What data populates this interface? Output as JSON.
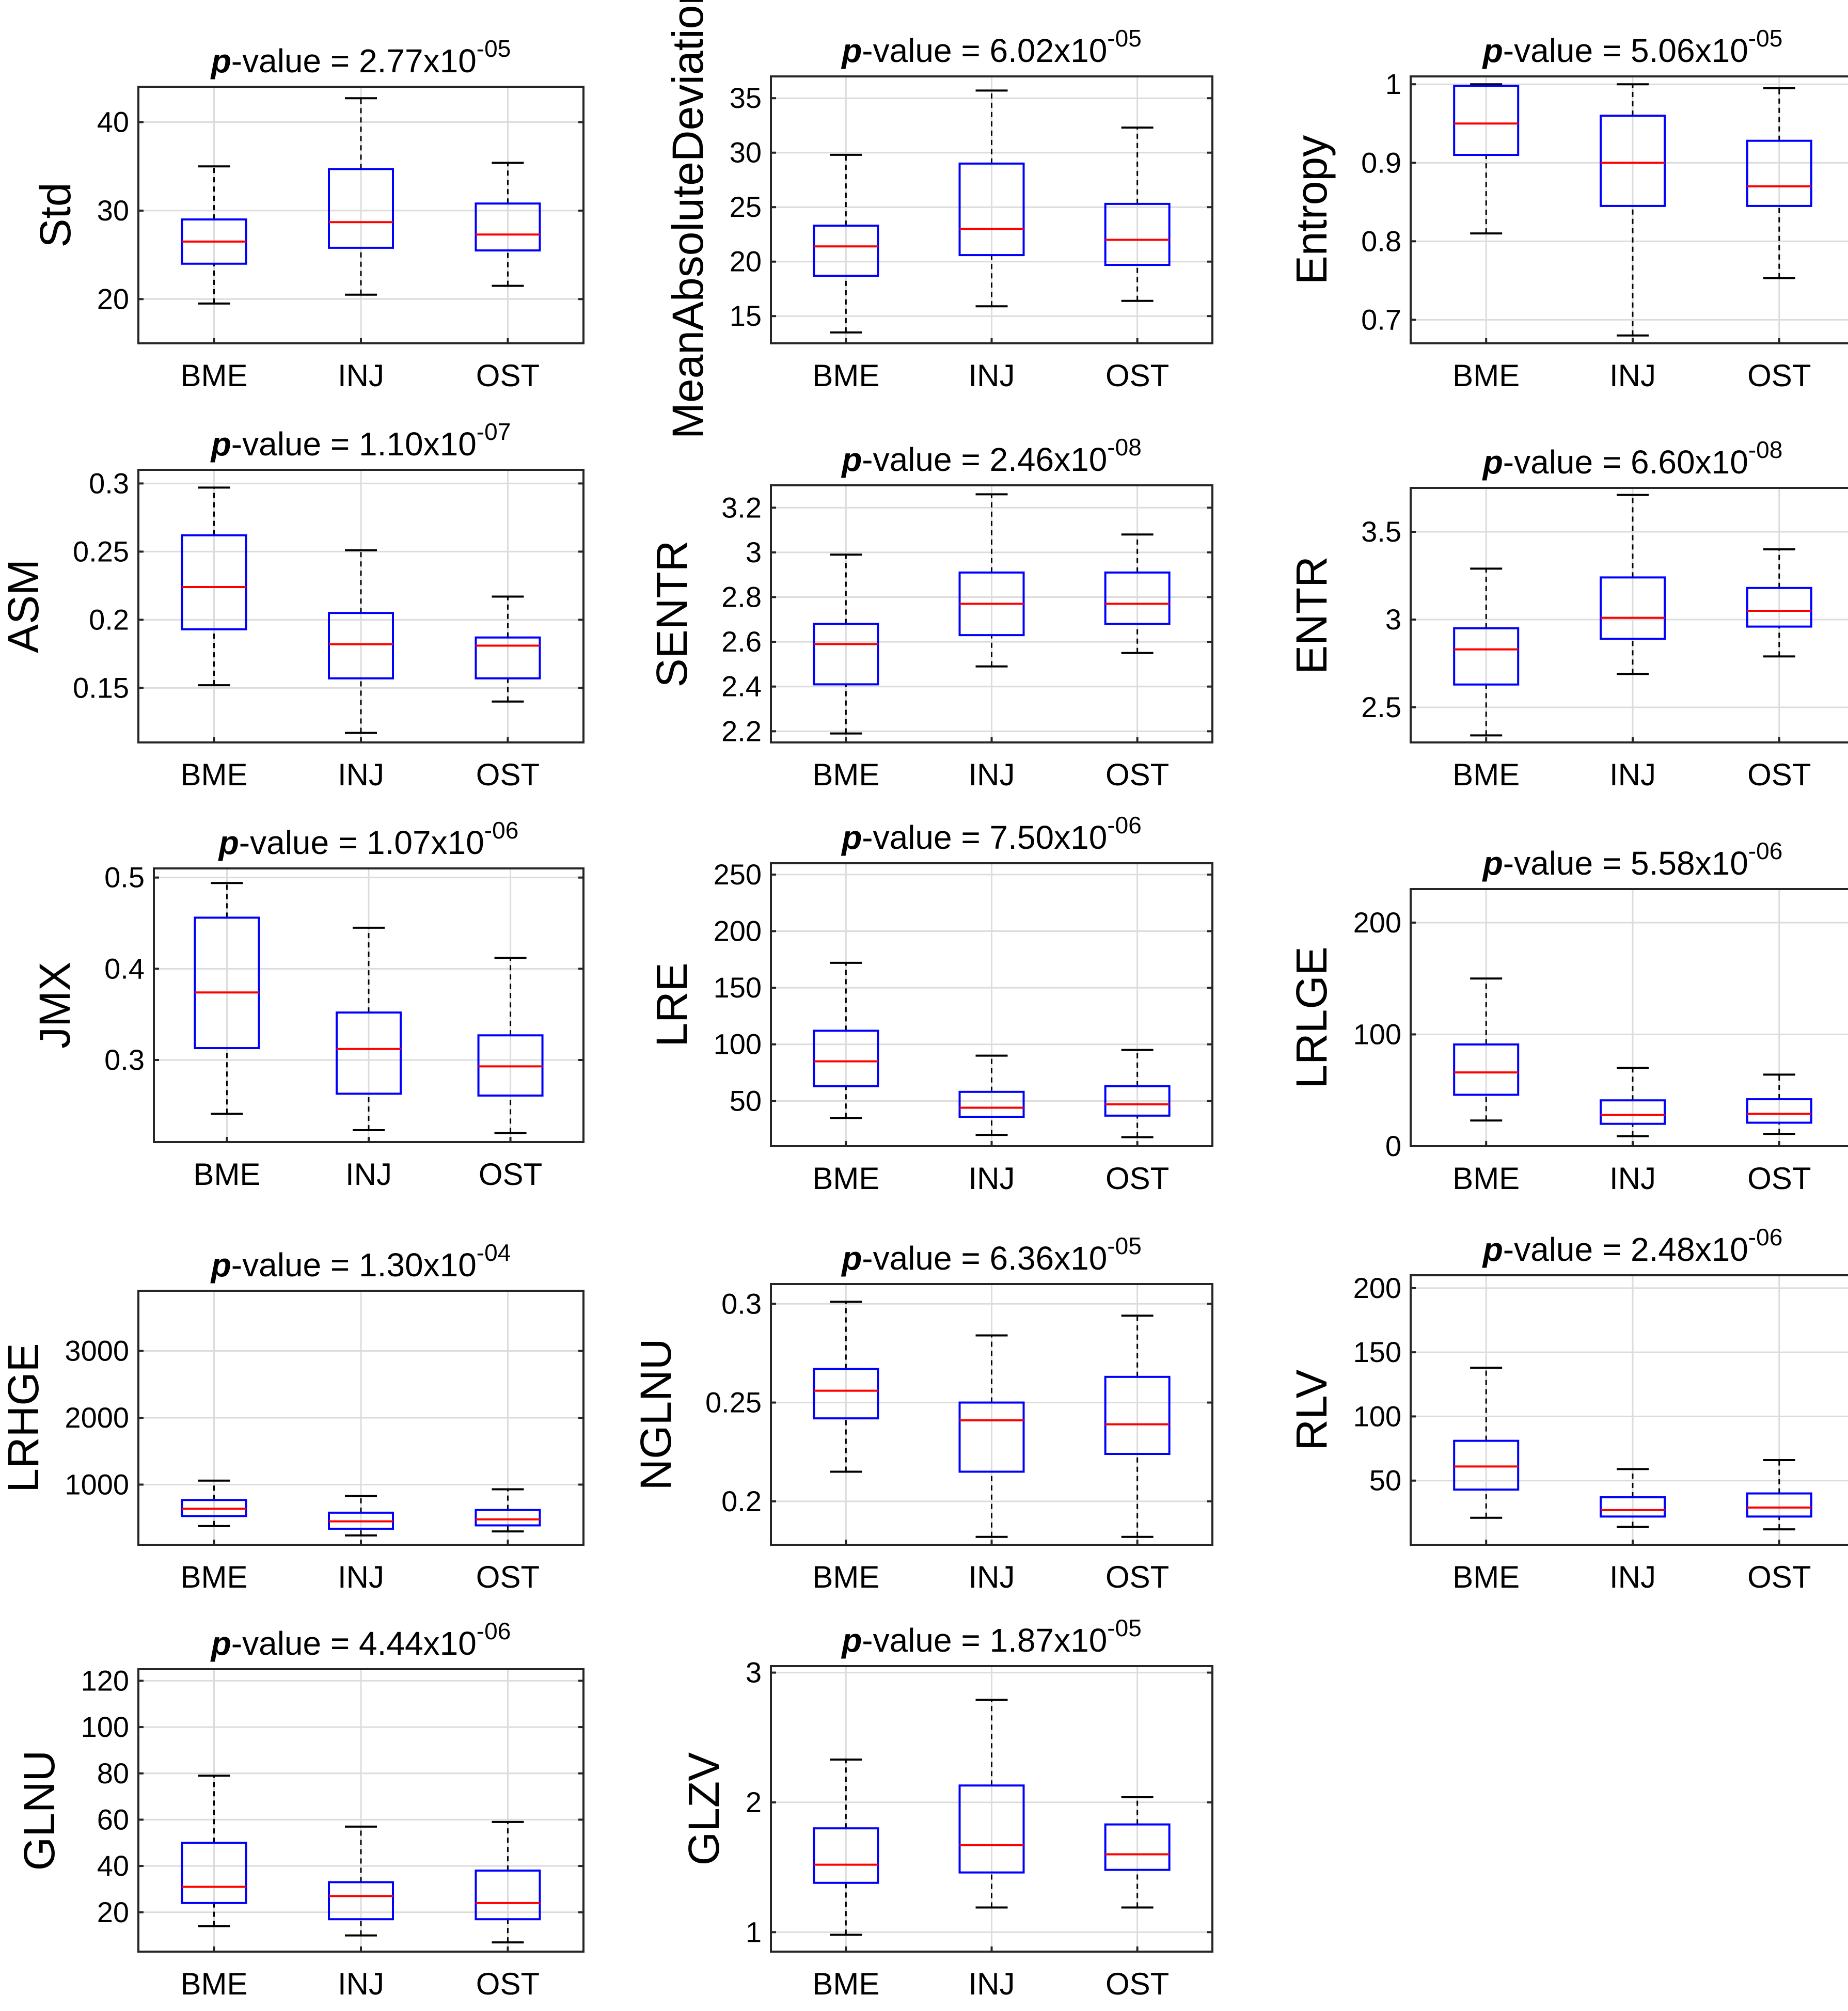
{
  "figure": {
    "style": {
      "box_color": "#0000ff",
      "median_color": "#ff0000",
      "whisker_color": "#000000",
      "grid_color": "#dcdcdc",
      "axes_color": "#262626",
      "text_color": "#000000"
    }
  },
  "chart_data": [
    {
      "type": "box",
      "title": {
        "prefix": "p",
        "text": "-value = 2.77x10",
        "exp": "-05"
      },
      "ylabel": "Std",
      "categories": [
        "BME",
        "INJ",
        "OST"
      ],
      "ylim": [
        15,
        44
      ],
      "yticks": [
        20,
        30,
        40
      ],
      "ytick_labels": [
        "20",
        "30",
        "40"
      ],
      "boxes": [
        {
          "min": 19.5,
          "q1": 24.0,
          "median": 26.5,
          "q3": 29.0,
          "max": 35.0
        },
        {
          "min": 20.5,
          "q1": 25.8,
          "median": 28.7,
          "q3": 34.7,
          "max": 42.7
        },
        {
          "min": 21.5,
          "q1": 25.5,
          "median": 27.3,
          "q3": 30.8,
          "max": 35.4
        }
      ]
    },
    {
      "type": "box",
      "title": {
        "prefix": "p",
        "text": "-value = 6.02x10",
        "exp": "-05"
      },
      "ylabel": "MeanAbsoluteDeviation",
      "categories": [
        "BME",
        "INJ",
        "OST"
      ],
      "ylim": [
        12.5,
        37
      ],
      "yticks": [
        15,
        20,
        25,
        30,
        35
      ],
      "ytick_labels": [
        "15",
        "20",
        "25",
        "30",
        "35"
      ],
      "boxes": [
        {
          "min": 13.5,
          "q1": 18.7,
          "median": 21.4,
          "q3": 23.3,
          "max": 29.8
        },
        {
          "min": 15.9,
          "q1": 20.6,
          "median": 23.0,
          "q3": 29.0,
          "max": 35.7
        },
        {
          "min": 16.4,
          "q1": 19.7,
          "median": 22.0,
          "q3": 25.3,
          "max": 32.3
        }
      ]
    },
    {
      "type": "box",
      "title": {
        "prefix": "p",
        "text": "-value = 5.06x10",
        "exp": "-05"
      },
      "ylabel": "Entropy",
      "categories": [
        "BME",
        "INJ",
        "OST"
      ],
      "ylim": [
        0.67,
        1.01
      ],
      "yticks": [
        0.7,
        0.8,
        0.9,
        1.0
      ],
      "ytick_labels": [
        "0.7",
        "0.8",
        "0.9",
        "1"
      ],
      "boxes": [
        {
          "min": 0.81,
          "q1": 0.91,
          "median": 0.95,
          "q3": 0.998,
          "max": 1.0
        },
        {
          "min": 0.68,
          "q1": 0.845,
          "median": 0.9,
          "q3": 0.96,
          "max": 1.0
        },
        {
          "min": 0.753,
          "q1": 0.845,
          "median": 0.87,
          "q3": 0.928,
          "max": 0.995
        }
      ]
    },
    {
      "type": "box",
      "title": {
        "prefix": "p",
        "text": "-value = 1.10x10",
        "exp": "-07"
      },
      "ylabel": "ASM",
      "categories": [
        "BME",
        "INJ",
        "OST"
      ],
      "ylim": [
        0.11,
        0.31
      ],
      "yticks": [
        0.15,
        0.2,
        0.25,
        0.3
      ],
      "ytick_labels": [
        "0.15",
        "0.2",
        "0.25",
        "0.3"
      ],
      "boxes": [
        {
          "min": 0.152,
          "q1": 0.193,
          "median": 0.224,
          "q3": 0.262,
          "max": 0.297
        },
        {
          "min": 0.117,
          "q1": 0.157,
          "median": 0.182,
          "q3": 0.205,
          "max": 0.251
        },
        {
          "min": 0.14,
          "q1": 0.157,
          "median": 0.181,
          "q3": 0.187,
          "max": 0.217
        }
      ]
    },
    {
      "type": "box",
      "title": {
        "prefix": "p",
        "text": "-value = 2.46x10",
        "exp": "-08"
      },
      "ylabel": "SENTR",
      "categories": [
        "BME",
        "INJ",
        "OST"
      ],
      "ylim": [
        2.15,
        3.3
      ],
      "yticks": [
        2.2,
        2.4,
        2.6,
        2.8,
        3.0,
        3.2
      ],
      "ytick_labels": [
        "2.2",
        "2.4",
        "2.6",
        "2.8",
        "3",
        "3.2"
      ],
      "boxes": [
        {
          "min": 2.19,
          "q1": 2.41,
          "median": 2.59,
          "q3": 2.68,
          "max": 2.99
        },
        {
          "min": 2.49,
          "q1": 2.63,
          "median": 2.77,
          "q3": 2.91,
          "max": 3.26
        },
        {
          "min": 2.55,
          "q1": 2.68,
          "median": 2.77,
          "q3": 2.91,
          "max": 3.08
        }
      ]
    },
    {
      "type": "box",
      "title": {
        "prefix": "p",
        "text": "-value = 6.60x10",
        "exp": "-08"
      },
      "ylabel": "ENTR",
      "categories": [
        "BME",
        "INJ",
        "OST"
      ],
      "ylim": [
        2.3,
        3.75
      ],
      "yticks": [
        2.5,
        3.0,
        3.5
      ],
      "ytick_labels": [
        "2.5",
        "3",
        "3.5"
      ],
      "boxes": [
        {
          "min": 2.34,
          "q1": 2.63,
          "median": 2.83,
          "q3": 2.95,
          "max": 3.29
        },
        {
          "min": 2.69,
          "q1": 2.89,
          "median": 3.01,
          "q3": 3.24,
          "max": 3.71
        },
        {
          "min": 2.79,
          "q1": 2.96,
          "median": 3.05,
          "q3": 3.18,
          "max": 3.4
        }
      ]
    },
    {
      "type": "box",
      "title": {
        "prefix": "p",
        "text": "-value = 1.07x10",
        "exp": "-06"
      },
      "ylabel": "JMX",
      "categories": [
        "BME",
        "INJ",
        "OST"
      ],
      "ylim": [
        0.21,
        0.51
      ],
      "yticks": [
        0.3,
        0.4,
        0.5
      ],
      "ytick_labels": [
        "0.3",
        "0.4",
        "0.5"
      ],
      "boxes": [
        {
          "min": 0.241,
          "q1": 0.313,
          "median": 0.374,
          "q3": 0.456,
          "max": 0.494
        },
        {
          "min": 0.223,
          "q1": 0.263,
          "median": 0.312,
          "q3": 0.352,
          "max": 0.445
        },
        {
          "min": 0.22,
          "q1": 0.261,
          "median": 0.293,
          "q3": 0.327,
          "max": 0.412
        }
      ]
    },
    {
      "type": "box",
      "title": {
        "prefix": "p",
        "text": "-value = 7.50x10",
        "exp": "-06"
      },
      "ylabel": "LRE",
      "categories": [
        "BME",
        "INJ",
        "OST"
      ],
      "ylim": [
        10,
        260
      ],
      "yticks": [
        50,
        100,
        150,
        200,
        250
      ],
      "ytick_labels": [
        "50",
        "100",
        "150",
        "200",
        "250"
      ],
      "boxes": [
        {
          "min": 35,
          "q1": 63,
          "median": 85,
          "q3": 112,
          "max": 172
        },
        {
          "min": 20,
          "q1": 36,
          "median": 44,
          "q3": 58,
          "max": 90
        },
        {
          "min": 18,
          "q1": 37,
          "median": 47,
          "q3": 63,
          "max": 95
        }
      ]
    },
    {
      "type": "box",
      "title": {
        "prefix": "p",
        "text": "-value = 5.58x10",
        "exp": "-06"
      },
      "ylabel": "LRLGE",
      "categories": [
        "BME",
        "INJ",
        "OST"
      ],
      "ylim": [
        0,
        230
      ],
      "yticks": [
        0,
        100,
        200
      ],
      "ytick_labels": [
        "0",
        "100",
        "200"
      ],
      "boxes": [
        {
          "min": 23,
          "q1": 46,
          "median": 66,
          "q3": 91,
          "max": 150
        },
        {
          "min": 9,
          "q1": 20,
          "median": 28,
          "q3": 41,
          "max": 70
        },
        {
          "min": 11,
          "q1": 21,
          "median": 29,
          "q3": 42,
          "max": 64
        }
      ]
    },
    {
      "type": "box",
      "title": {
        "prefix": "p",
        "text": "-value = 1.30x10",
        "exp": "-04"
      },
      "ylabel": "LRHGE",
      "categories": [
        "BME",
        "INJ",
        "OST"
      ],
      "ylim": [
        100,
        3900
      ],
      "yticks": [
        1000,
        2000,
        3000
      ],
      "ytick_labels": [
        "1000",
        "2000",
        "3000"
      ],
      "boxes": [
        {
          "min": 380,
          "q1": 530,
          "median": 640,
          "q3": 770,
          "max": 1060
        },
        {
          "min": 240,
          "q1": 340,
          "median": 450,
          "q3": 580,
          "max": 830
        },
        {
          "min": 300,
          "q1": 390,
          "median": 480,
          "q3": 620,
          "max": 930
        }
      ]
    },
    {
      "type": "box",
      "title": {
        "prefix": "p",
        "text": "-value = 6.36x10",
        "exp": "-05"
      },
      "ylabel": "NGLNU",
      "categories": [
        "BME",
        "INJ",
        "OST"
      ],
      "ylim": [
        0.178,
        0.31
      ],
      "yticks": [
        0.2,
        0.25,
        0.3
      ],
      "ytick_labels": [
        "0.2",
        "0.25",
        "0.3"
      ],
      "boxes": [
        {
          "min": 0.215,
          "q1": 0.242,
          "median": 0.256,
          "q3": 0.267,
          "max": 0.301
        },
        {
          "min": 0.182,
          "q1": 0.215,
          "median": 0.241,
          "q3": 0.25,
          "max": 0.284
        },
        {
          "min": 0.182,
          "q1": 0.224,
          "median": 0.239,
          "q3": 0.263,
          "max": 0.294
        }
      ]
    },
    {
      "type": "box",
      "title": {
        "prefix": "p",
        "text": "-value = 2.48x10",
        "exp": "-06"
      },
      "ylabel": "RLV",
      "categories": [
        "BME",
        "INJ",
        "OST"
      ],
      "ylim": [
        0,
        210
      ],
      "yticks": [
        50,
        100,
        150,
        200
      ],
      "ytick_labels": [
        "50",
        "100",
        "150",
        "200"
      ],
      "boxes": [
        {
          "min": 21,
          "q1": 43,
          "median": 61,
          "q3": 81,
          "max": 138
        },
        {
          "min": 14,
          "q1": 22,
          "median": 27,
          "q3": 37,
          "max": 59
        },
        {
          "min": 12,
          "q1": 22,
          "median": 29,
          "q3": 40,
          "max": 66
        }
      ]
    },
    {
      "type": "box",
      "title": {
        "prefix": "p",
        "text": "-value = 4.44x10",
        "exp": "-06"
      },
      "ylabel": "GLNU",
      "categories": [
        "BME",
        "INJ",
        "OST"
      ],
      "ylim": [
        3,
        125
      ],
      "yticks": [
        20,
        40,
        60,
        80,
        100,
        120
      ],
      "ytick_labels": [
        "20",
        "40",
        "60",
        "80",
        "100",
        "120"
      ],
      "boxes": [
        {
          "min": 14,
          "q1": 24,
          "median": 31,
          "q3": 50,
          "max": 79
        },
        {
          "min": 10,
          "q1": 17,
          "median": 27,
          "q3": 33,
          "max": 57
        },
        {
          "min": 7,
          "q1": 17,
          "median": 24,
          "q3": 38,
          "max": 59
        }
      ]
    },
    {
      "type": "box",
      "title": {
        "prefix": "p",
        "text": "-value = 1.87x10",
        "exp": "-05"
      },
      "ylabel": "GLZV",
      "categories": [
        "BME",
        "INJ",
        "OST"
      ],
      "ylim": [
        0.85,
        3.05
      ],
      "yticks": [
        1,
        2,
        3
      ],
      "ytick_labels": [
        "1",
        "2",
        "3"
      ],
      "boxes": [
        {
          "min": 0.98,
          "q1": 1.38,
          "median": 1.52,
          "q3": 1.8,
          "max": 2.33
        },
        {
          "min": 1.19,
          "q1": 1.46,
          "median": 1.67,
          "q3": 2.13,
          "max": 2.79
        },
        {
          "min": 1.19,
          "q1": 1.48,
          "median": 1.6,
          "q3": 1.83,
          "max": 2.04
        }
      ]
    }
  ]
}
